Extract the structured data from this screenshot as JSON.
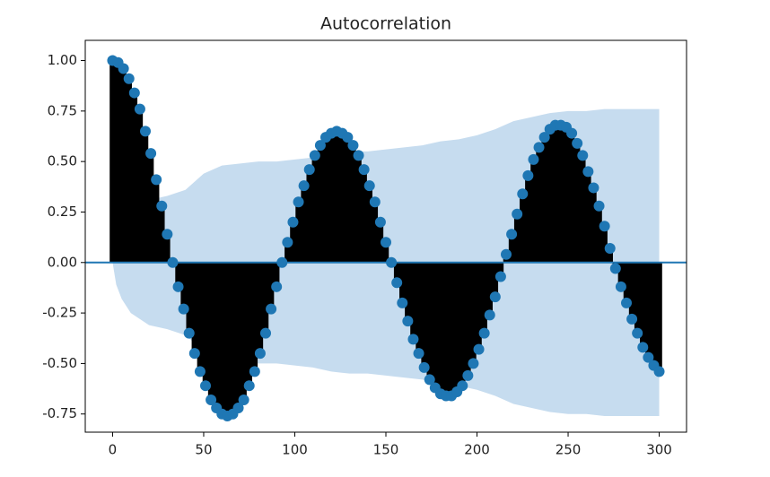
{
  "chart_data": {
    "type": "acf",
    "title": "Autocorrelation",
    "x": [
      0,
      3,
      6,
      9,
      12,
      15,
      18,
      21,
      24,
      27,
      30,
      33,
      36,
      39,
      42,
      45,
      48,
      51,
      54,
      57,
      60,
      63,
      66,
      69,
      72,
      75,
      78,
      81,
      84,
      87,
      90,
      93,
      96,
      99,
      102,
      105,
      108,
      111,
      114,
      117,
      120,
      123,
      126,
      129,
      132,
      135,
      138,
      141,
      144,
      147,
      150,
      153,
      156,
      159,
      162,
      165,
      168,
      171,
      174,
      177,
      180,
      183,
      186,
      189,
      192,
      195,
      198,
      201,
      204,
      207,
      210,
      213,
      216,
      219,
      222,
      225,
      228,
      231,
      234,
      237,
      240,
      243,
      246,
      249,
      252,
      255,
      258,
      261,
      264,
      267,
      270,
      273,
      276,
      279,
      282,
      285,
      288,
      291,
      294,
      297,
      300
    ],
    "values": [
      1.0,
      0.99,
      0.96,
      0.91,
      0.84,
      0.76,
      0.65,
      0.54,
      0.41,
      0.28,
      0.14,
      0,
      -0.12,
      -0.23,
      -0.35,
      -0.45,
      -0.54,
      -0.61,
      -0.68,
      -0.72,
      -0.75,
      -0.76,
      -0.75,
      -0.72,
      -0.68,
      -0.61,
      -0.54,
      -0.45,
      -0.35,
      -0.23,
      -0.12,
      0,
      0.1,
      0.2,
      0.3,
      0.38,
      0.46,
      0.53,
      0.58,
      0.62,
      0.64,
      0.65,
      0.64,
      0.62,
      0.58,
      0.53,
      0.46,
      0.38,
      0.3,
      0.2,
      0.1,
      0,
      -0.1,
      -0.2,
      -0.29,
      -0.38,
      -0.45,
      -0.52,
      -0.58,
      -0.62,
      -0.65,
      -0.66,
      -0.66,
      -0.64,
      -0.61,
      -0.56,
      -0.5,
      -0.43,
      -0.35,
      -0.26,
      -0.17,
      -0.07,
      0.04,
      0.14,
      0.24,
      0.34,
      0.43,
      0.51,
      0.57,
      0.62,
      0.66,
      0.68,
      0.68,
      0.67,
      0.64,
      0.59,
      0.53,
      0.45,
      0.37,
      0.28,
      0.18,
      0.07,
      -0.03,
      -0.12,
      -0.2,
      -0.28,
      -0.35,
      -0.42,
      -0.47,
      -0.51,
      -0.54
    ],
    "color": "#1f77b4",
    "band_x": [
      0,
      2,
      5,
      10,
      20,
      30,
      40,
      50,
      60,
      70,
      80,
      90,
      100,
      110,
      120,
      130,
      140,
      150,
      160,
      170,
      180,
      190,
      200,
      210,
      220,
      230,
      240,
      250,
      260,
      270,
      280,
      290,
      300
    ],
    "band_upper": [
      0,
      0.11,
      0.18,
      0.25,
      0.31,
      0.33,
      0.36,
      0.44,
      0.48,
      0.49,
      0.5,
      0.5,
      0.51,
      0.52,
      0.54,
      0.55,
      0.55,
      0.56,
      0.57,
      0.58,
      0.6,
      0.61,
      0.63,
      0.66,
      0.7,
      0.72,
      0.74,
      0.75,
      0.75,
      0.76,
      0.76,
      0.76,
      0.76
    ],
    "band_lower": [
      0,
      -0.11,
      -0.18,
      -0.25,
      -0.31,
      -0.33,
      -0.36,
      -0.44,
      -0.48,
      -0.49,
      -0.5,
      -0.5,
      -0.51,
      -0.52,
      -0.54,
      -0.55,
      -0.55,
      -0.56,
      -0.57,
      -0.58,
      -0.6,
      -0.61,
      -0.63,
      -0.66,
      -0.7,
      -0.72,
      -0.74,
      -0.75,
      -0.75,
      -0.76,
      -0.76,
      -0.76,
      -0.76
    ],
    "band_color": "#c6dcef",
    "stem_color": "#000000",
    "xlim": [
      -15,
      315
    ],
    "ylim": [
      -0.84,
      1.1
    ],
    "xticks": [
      0,
      50,
      100,
      150,
      200,
      250,
      300
    ],
    "yticks": [
      {
        "value": 1,
        "label": "1.00"
      },
      0.75,
      {
        "value": 0.5,
        "label": "0.50"
      },
      0.25,
      {
        "value": 0,
        "label": "0.00"
      },
      -0.25,
      {
        "value": -0.5,
        "label": "-0.50"
      },
      -0.75
    ]
  }
}
